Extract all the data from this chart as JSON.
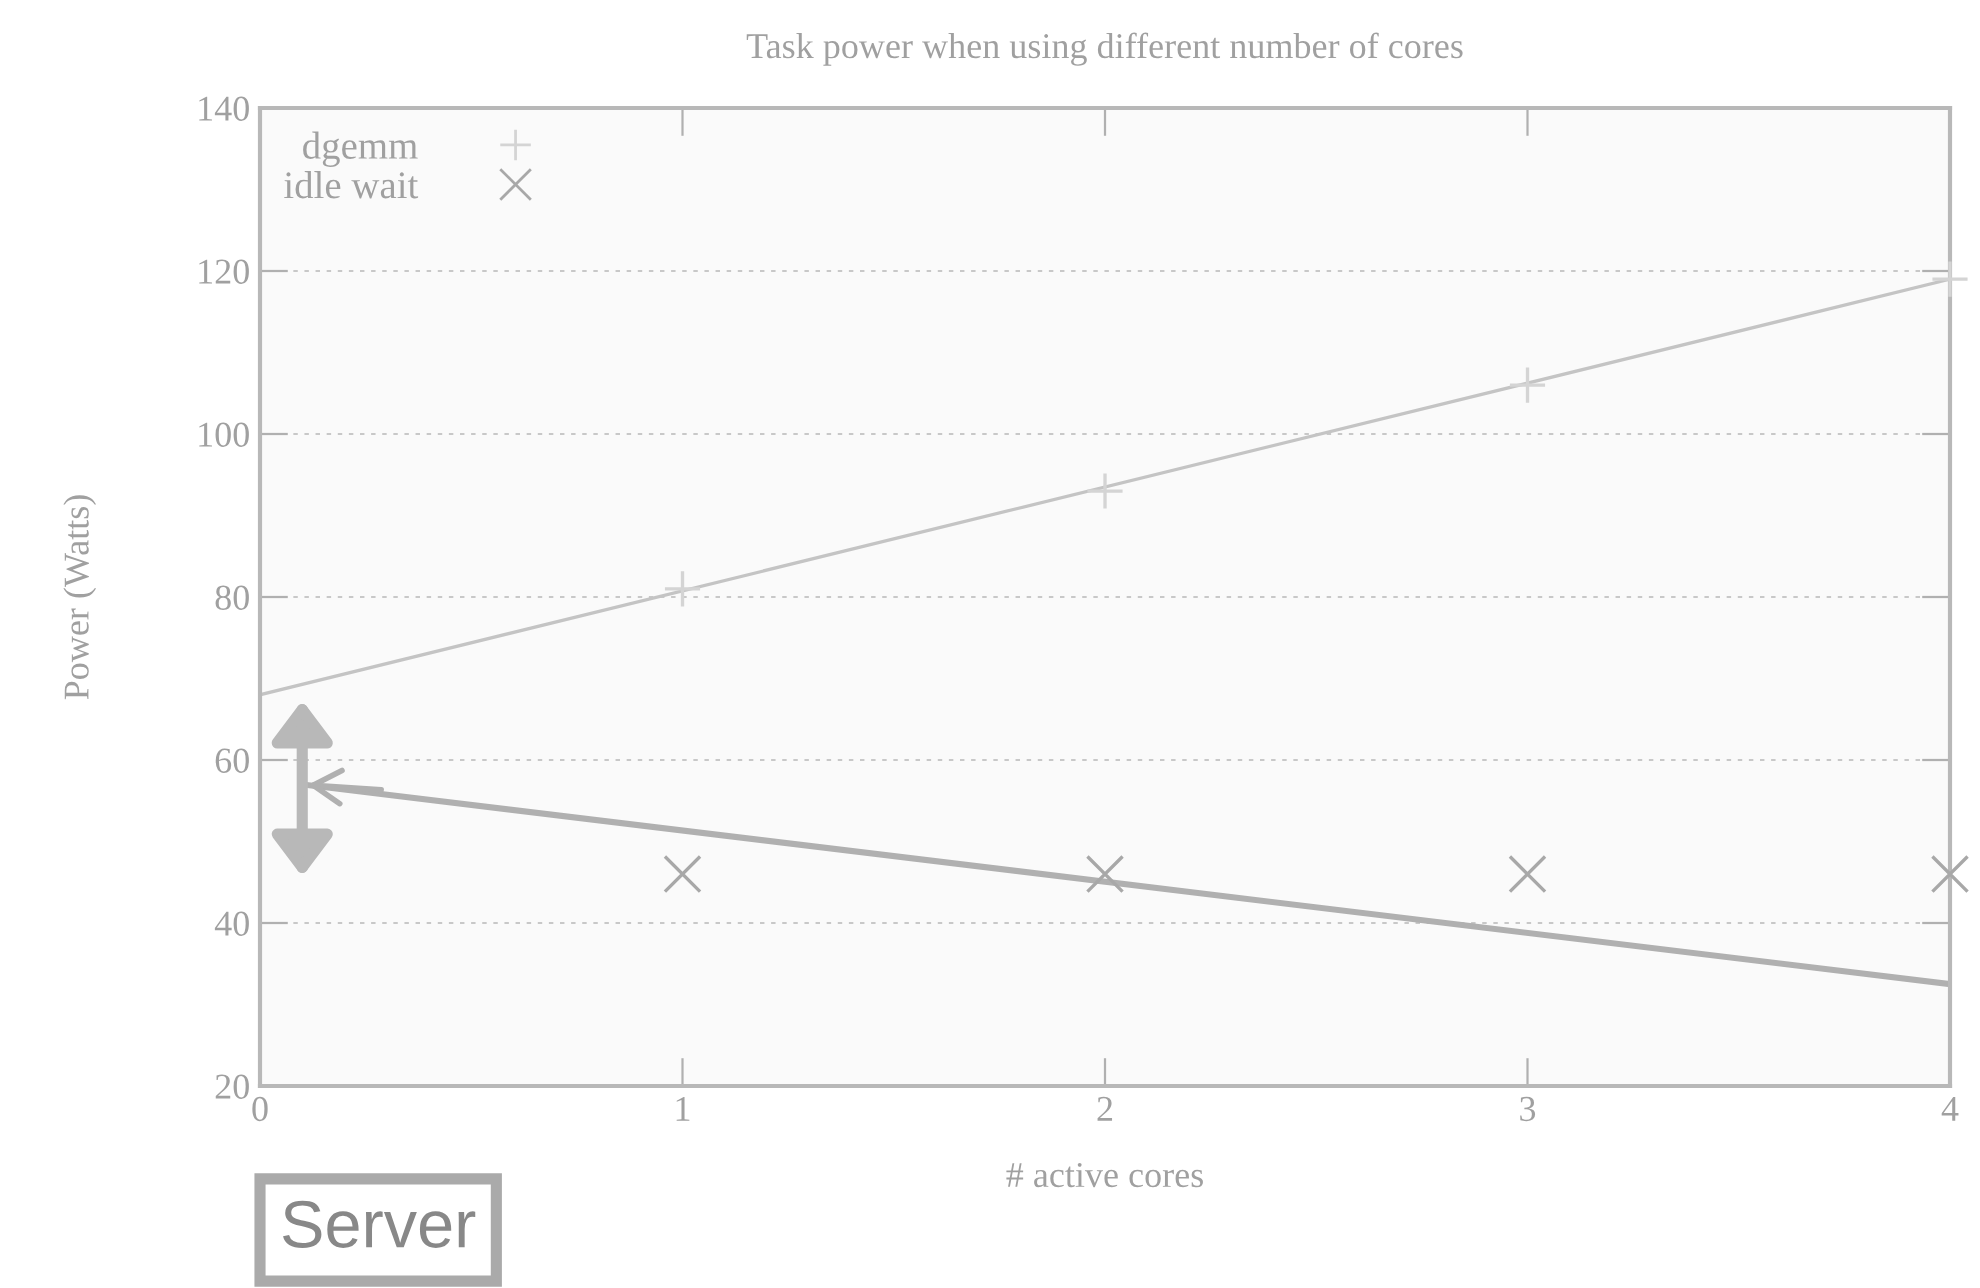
{
  "chart_data": {
    "type": "scatter",
    "title": "Task power when using different number of cores",
    "xlabel": "# active cores",
    "ylabel": "Power (Watts)",
    "series": [
      {
        "name": "dgemm",
        "marker": "cross",
        "color": "#d4d4d4",
        "x": [
          1,
          2,
          3,
          4
        ],
        "values": [
          81,
          93,
          106,
          119
        ]
      },
      {
        "name": "idle wait",
        "marker": "x",
        "color": "#a8a8a8",
        "x": [
          1,
          2,
          3,
          4
        ],
        "values": [
          46,
          46,
          46,
          46
        ]
      },
      {
        "type": "line",
        "color": "#c4c4c4",
        "line_style": "solid",
        "x": [
          0,
          4
        ],
        "values": [
          68,
          119
        ]
      },
      {
        "type": "line",
        "color": "#b0b0b0",
        "line_style": "solid",
        "x": [
          0.1,
          4
        ],
        "values": [
          57,
          32.5
        ]
      }
    ],
    "xlim": [
      0,
      4
    ],
    "xticks": [
      0,
      1,
      2,
      3,
      4
    ],
    "ylim": [
      20,
      140
    ],
    "yticks": [
      20,
      40,
      60,
      80,
      100,
      120,
      140
    ],
    "grid": "y",
    "legend": "top left",
    "annotations": [
      "Server"
    ]
  }
}
